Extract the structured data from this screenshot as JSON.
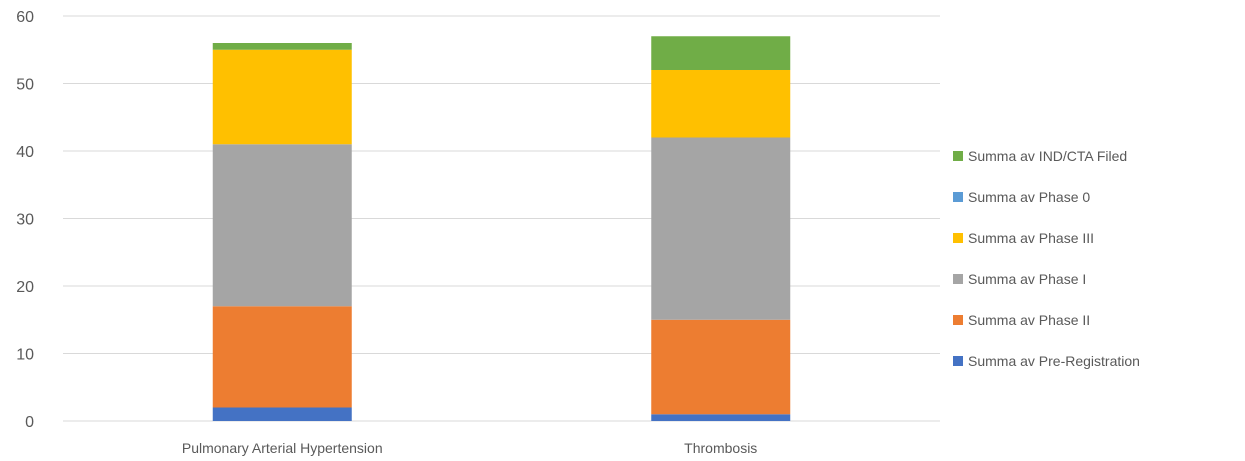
{
  "chart_data": {
    "type": "bar",
    "stacked": true,
    "categories": [
      "Pulmonary Arterial Hypertension",
      "Thrombosis"
    ],
    "series": [
      {
        "name": "Summa av Pre-Registration",
        "values": [
          2,
          1
        ],
        "color": "#4472C4"
      },
      {
        "name": "Summa av Phase II",
        "values": [
          15,
          14
        ],
        "color": "#ED7D31"
      },
      {
        "name": "Summa av Phase I",
        "values": [
          24,
          27
        ],
        "color": "#A5A5A5"
      },
      {
        "name": "Summa av Phase III",
        "values": [
          14,
          10
        ],
        "color": "#FFC000"
      },
      {
        "name": "Summa av Phase 0",
        "values": [
          0,
          0
        ],
        "color": "#5B9BD5"
      },
      {
        "name": "Summa av IND/CTA Filed",
        "values": [
          1,
          5
        ],
        "color": "#70AD47"
      }
    ],
    "yticks": [
      0,
      10,
      20,
      30,
      40,
      50,
      60
    ],
    "ylim": [
      0,
      60
    ],
    "grid": true,
    "legend_position": "right",
    "legend_order": [
      5,
      4,
      3,
      2,
      1,
      0
    ]
  }
}
